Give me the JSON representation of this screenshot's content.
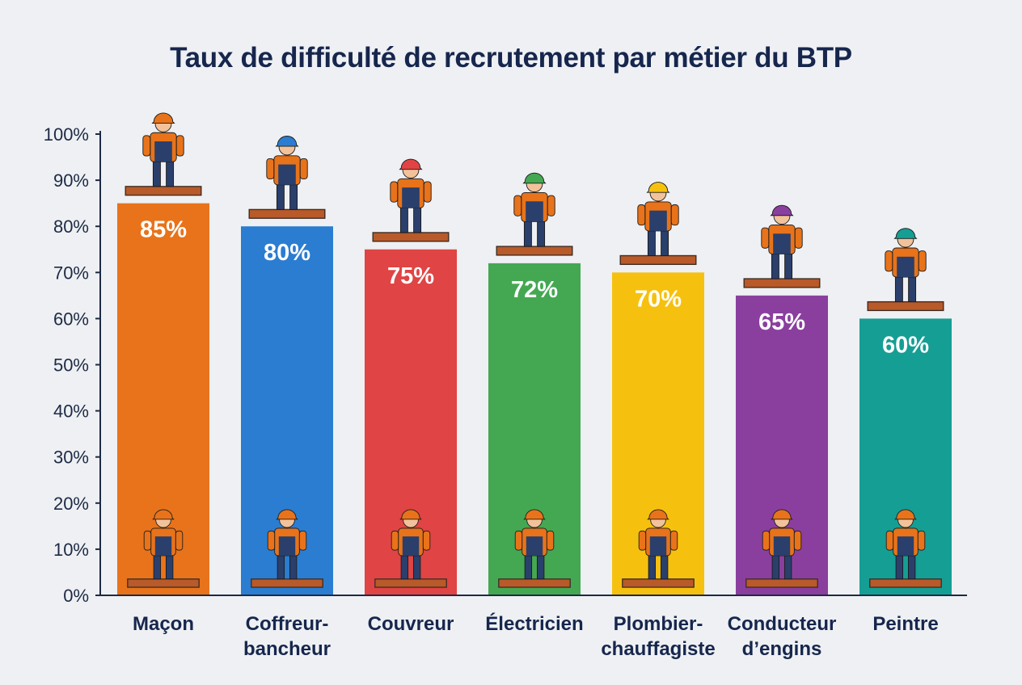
{
  "chart_data": {
    "type": "bar",
    "title": "Taux de difficulté de recrutement par métier du BTP",
    "xlabel": "",
    "ylabel": "",
    "ylim": [
      0,
      100
    ],
    "yticks": [
      "0%",
      "10%",
      "20%",
      "30%",
      "40%",
      "50%",
      "60%",
      "70%",
      "80%",
      "90%",
      "100%"
    ],
    "grid": false,
    "categories": [
      [
        "Maçon"
      ],
      [
        "Coffreur-",
        "bancheur"
      ],
      [
        "Couvreur"
      ],
      [
        "Électricien"
      ],
      [
        "Plombier-",
        "chauffagiste"
      ],
      [
        "Conducteur",
        "d’engins"
      ],
      [
        "Peintre"
      ]
    ],
    "values": [
      85,
      80,
      75,
      72,
      70,
      65,
      60
    ],
    "value_labels": [
      "85%",
      "80%",
      "75%",
      "72%",
      "70%",
      "65%",
      "60%"
    ],
    "colors": [
      "#e8731a",
      "#2b7dd1",
      "#e04444",
      "#44a852",
      "#f6c10e",
      "#8a3f9e",
      "#159e94"
    ],
    "icons": [
      "bricklayer-icon",
      "formwork-worker-icon",
      "roofer-icon",
      "electrician-icon",
      "plumber-icon",
      "excavator-icon",
      "painter-icon"
    ]
  }
}
